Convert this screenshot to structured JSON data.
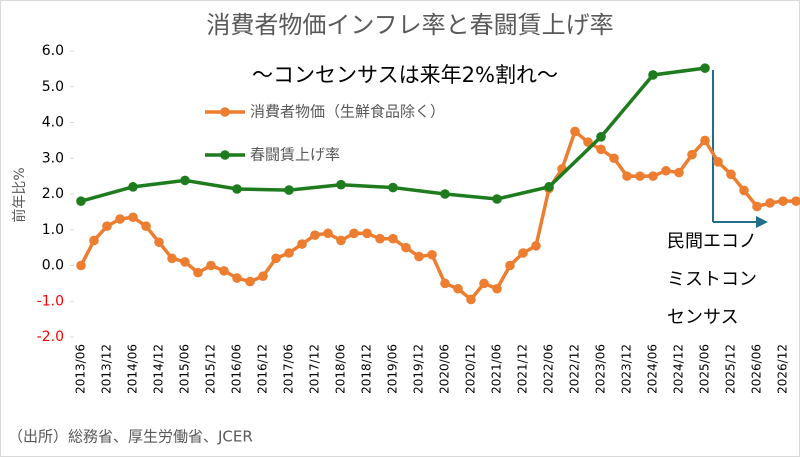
{
  "chart_data": {
    "type": "line",
    "title": "消費者物価インフレ率と春闘賃上げ率",
    "subtitle": "〜コンセンサスは来年2%割れ〜",
    "y_label": "前年比%",
    "source": "（出所）総務省、厚生労働省、JCER",
    "annotation": [
      "民間エコノ",
      "ミストコン",
      "センサス"
    ],
    "categories": [
      "2013/06",
      null,
      "2013/12",
      null,
      "2014/06",
      null,
      "2014/12",
      null,
      "2015/06",
      null,
      "2015/12",
      null,
      "2016/06",
      null,
      "2016/12",
      null,
      "2017/06",
      null,
      "2017/12",
      null,
      "2018/06",
      null,
      "2018/12",
      null,
      "2019/06",
      null,
      "2019/12",
      null,
      "2020/06",
      null,
      "2020/12",
      null,
      "2021/06",
      null,
      "2021/12",
      null,
      "2022/06",
      null,
      "2022/12",
      null,
      "2023/06",
      null,
      "2023/12",
      null,
      "2024/06",
      null,
      "2024/12",
      null,
      "2025/06",
      null,
      "2025/12",
      null,
      "2026/06",
      null,
      "2026/12",
      null
    ],
    "series": [
      {
        "name": "消費者物価（生鮮食品除く）",
        "color": "#ed7d31",
        "values": [
          0.0,
          0.7,
          1.1,
          1.3,
          1.35,
          1.1,
          0.65,
          0.2,
          0.1,
          -0.2,
          0.0,
          -0.15,
          -0.35,
          -0.45,
          -0.3,
          0.2,
          0.35,
          0.6,
          0.85,
          0.9,
          0.7,
          0.9,
          0.9,
          0.75,
          0.75,
          0.5,
          0.25,
          0.3,
          -0.5,
          -0.65,
          -0.95,
          -0.5,
          -0.65,
          0.0,
          0.35,
          0.55,
          2.15,
          2.7,
          3.75,
          3.45,
          3.25,
          3.0,
          2.5,
          2.5,
          2.5,
          2.65,
          2.6,
          3.1,
          3.5,
          2.9,
          2.55,
          2.1,
          1.65,
          1.75,
          1.8,
          1.8
        ]
      },
      {
        "name": "春闘賃上げ率",
        "color": "#1e7b1e",
        "x": [
          "2013/06",
          "2014/06",
          "2015/06",
          "2016/06",
          "2017/06",
          "2018/06",
          "2019/06",
          "2020/06",
          "2021/06",
          "2022/06",
          "2023/06",
          "2024/06",
          "2025/06"
        ],
        "values": [
          1.8,
          2.2,
          2.38,
          2.14,
          2.11,
          2.26,
          2.18,
          2.0,
          1.86,
          2.2,
          3.6,
          5.33,
          5.52
        ]
      }
    ],
    "ylim": [
      -2,
      6
    ],
    "yticks": [
      {
        "value": -2,
        "label": "-2.0"
      },
      {
        "value": -1,
        "label": "-1.0"
      },
      {
        "value": 0,
        "label": "0.0"
      },
      {
        "value": 1,
        "label": "1.0"
      },
      {
        "value": 2,
        "label": "2.0"
      },
      {
        "value": 3,
        "label": "3.0"
      },
      {
        "value": 4,
        "label": "4.0"
      },
      {
        "value": 5,
        "label": "5.0"
      },
      {
        "value": 6,
        "label": "6.0"
      }
    ],
    "negative_tick_color": "#ff0000",
    "grid": false
  }
}
